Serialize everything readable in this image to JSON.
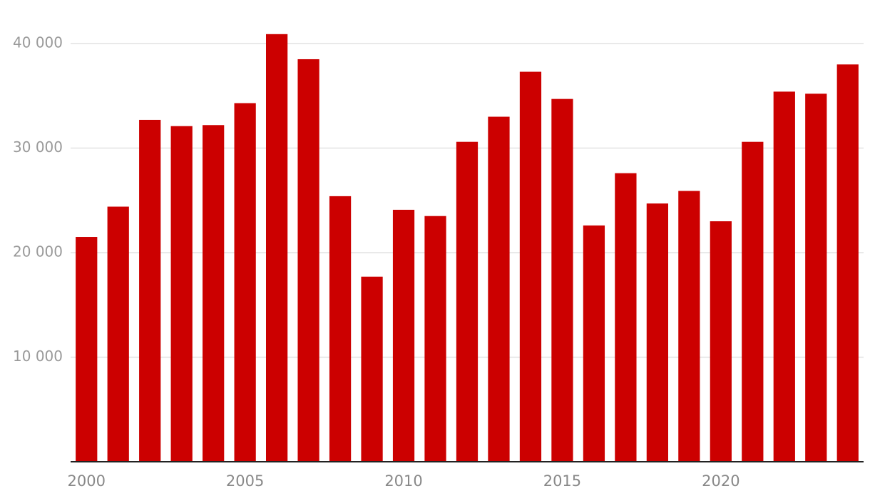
{
  "chart_data": {
    "type": "bar",
    "x": [
      2000,
      2001,
      2002,
      2003,
      2004,
      2005,
      2006,
      2007,
      2008,
      2009,
      2010,
      2011,
      2012,
      2013,
      2014,
      2015,
      2016,
      2017,
      2018,
      2019,
      2020,
      2021,
      2022,
      2023,
      2024
    ],
    "values": [
      21500,
      24400,
      32700,
      32100,
      32200,
      34300,
      40900,
      38500,
      25400,
      17700,
      24100,
      23500,
      30600,
      33000,
      37300,
      34700,
      22600,
      27600,
      24700,
      25900,
      23000,
      30600,
      35400,
      35200,
      38000
    ],
    "color": "#cc0000",
    "xlim": [
      1999.5,
      2024.5
    ],
    "xticks": [
      2000,
      2005,
      2010,
      2015,
      2020
    ],
    "ylim": [
      0,
      40000
    ],
    "yticks": [
      {
        "value": 10000,
        "label": "10 000"
      },
      {
        "value": 20000,
        "label": "20 000"
      },
      {
        "value": 30000,
        "label": "30 000"
      },
      {
        "value": 40000,
        "label": "40 000"
      }
    ],
    "grid": true
  }
}
